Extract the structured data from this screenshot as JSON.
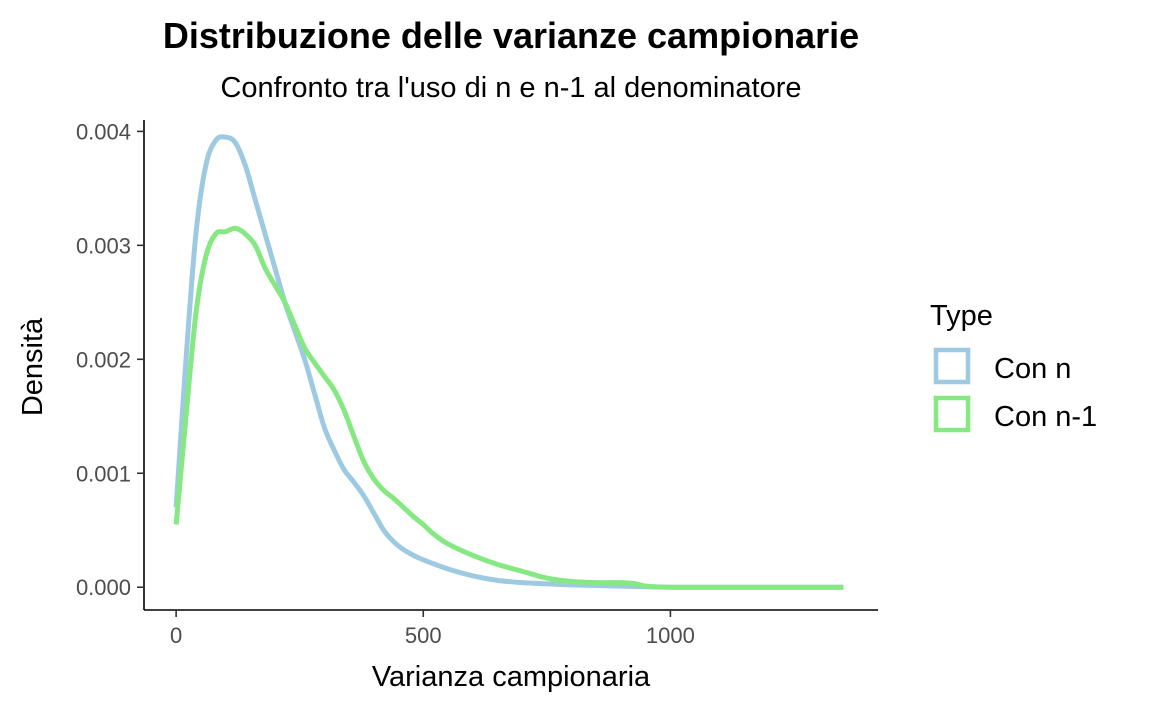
{
  "chart_data": {
    "type": "line",
    "title": "Distribuzione delle varianze campionarie",
    "subtitle": "Confronto tra l'uso di n e n-1 al denominatore",
    "xlabel": "Varianza campionaria",
    "ylabel": "Densità",
    "xlim": [
      -65,
      1420
    ],
    "ylim": [
      -0.0002,
      0.0041
    ],
    "x_ticks": [
      0,
      500,
      1000
    ],
    "x_tick_labels": [
      "0",
      "500",
      "1000"
    ],
    "y_ticks": [
      0,
      0.001,
      0.002,
      0.003,
      0.004
    ],
    "y_tick_labels": [
      "0.000",
      "0.001",
      "0.002",
      "0.003",
      "0.004"
    ],
    "grid": false,
    "legend": {
      "title": "Type",
      "position": "right"
    },
    "series": [
      {
        "name": "Con n",
        "color": "#9ecae1",
        "points": [
          [
            0,
            0.0007
          ],
          [
            20,
            0.002
          ],
          [
            40,
            0.0031
          ],
          [
            60,
            0.0037
          ],
          [
            80,
            0.00392
          ],
          [
            100,
            0.00395
          ],
          [
            120,
            0.0039
          ],
          [
            140,
            0.0037
          ],
          [
            160,
            0.0034
          ],
          [
            180,
            0.0031
          ],
          [
            200,
            0.0028
          ],
          [
            220,
            0.0025
          ],
          [
            240,
            0.00225
          ],
          [
            260,
            0.002
          ],
          [
            280,
            0.0017
          ],
          [
            300,
            0.0014
          ],
          [
            320,
            0.0012
          ],
          [
            340,
            0.00103
          ],
          [
            360,
            0.00092
          ],
          [
            380,
            0.0008
          ],
          [
            400,
            0.00065
          ],
          [
            420,
            0.0005
          ],
          [
            440,
            0.0004
          ],
          [
            460,
            0.00033
          ],
          [
            480,
            0.00028
          ],
          [
            500,
            0.00024
          ],
          [
            550,
            0.00016
          ],
          [
            600,
            0.0001
          ],
          [
            650,
            6e-05
          ],
          [
            700,
            4e-05
          ],
          [
            750,
            3e-05
          ],
          [
            800,
            2e-05
          ],
          [
            900,
            1e-05
          ],
          [
            1000,
            0.0
          ],
          [
            1100,
            0.0
          ],
          [
            1200,
            0.0
          ],
          [
            1350,
            0.0
          ]
        ]
      },
      {
        "name": "Con n-1",
        "color": "#86e882",
        "points": [
          [
            0,
            0.00055
          ],
          [
            20,
            0.0015
          ],
          [
            40,
            0.0024
          ],
          [
            60,
            0.0029
          ],
          [
            80,
            0.0031
          ],
          [
            100,
            0.00312
          ],
          [
            120,
            0.00315
          ],
          [
            140,
            0.0031
          ],
          [
            160,
            0.003
          ],
          [
            180,
            0.0028
          ],
          [
            200,
            0.00265
          ],
          [
            220,
            0.0025
          ],
          [
            240,
            0.0023
          ],
          [
            260,
            0.0021
          ],
          [
            280,
            0.00197
          ],
          [
            300,
            0.00185
          ],
          [
            320,
            0.00173
          ],
          [
            340,
            0.00155
          ],
          [
            360,
            0.00132
          ],
          [
            380,
            0.0011
          ],
          [
            400,
            0.00095
          ],
          [
            420,
            0.00085
          ],
          [
            440,
            0.00078
          ],
          [
            460,
            0.0007
          ],
          [
            480,
            0.00062
          ],
          [
            500,
            0.00055
          ],
          [
            520,
            0.00047
          ],
          [
            550,
            0.00038
          ],
          [
            600,
            0.00028
          ],
          [
            650,
            0.0002
          ],
          [
            700,
            0.00014
          ],
          [
            750,
            8e-05
          ],
          [
            800,
            5e-05
          ],
          [
            850,
            4e-05
          ],
          [
            900,
            4e-05
          ],
          [
            930,
            3e-05
          ],
          [
            950,
            1e-05
          ],
          [
            1000,
            0.0
          ],
          [
            1100,
            0.0
          ],
          [
            1200,
            0.0
          ],
          [
            1350,
            0.0
          ]
        ]
      }
    ]
  }
}
